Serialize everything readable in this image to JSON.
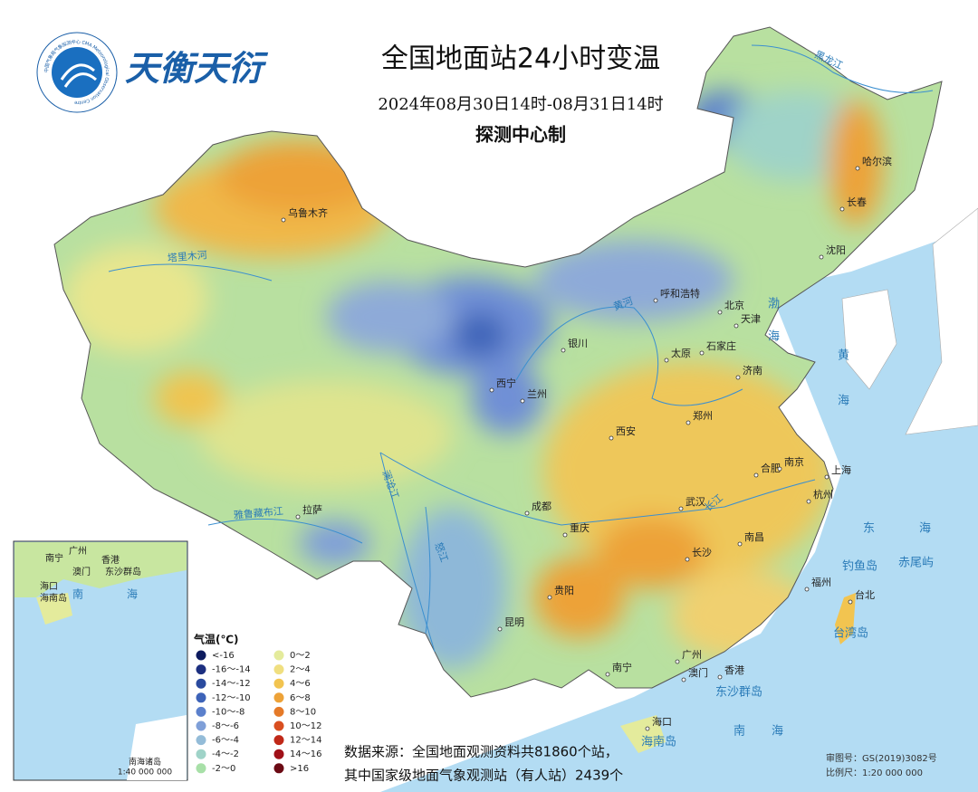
{
  "header": {
    "logo_ring_text": "中国气象局气象探测中心 CMA Meteorological Observation Centre",
    "logo_text": "天衡天衍",
    "title": "全国地面站24小时变温",
    "period": "2024年08月30日14时-08月31日14时",
    "producer": "探测中心制"
  },
  "cities": [
    "乌鲁木齐",
    "哈尔滨",
    "长春",
    "沈阳",
    "呼和浩特",
    "北京",
    "天津",
    "银川",
    "太原",
    "石家庄",
    "济南",
    "西宁",
    "兰州",
    "郑州",
    "西安",
    "合肥",
    "南京",
    "上海",
    "杭州",
    "成都",
    "武汉",
    "重庆",
    "长沙",
    "南昌",
    "福州",
    "台北",
    "贵阳",
    "昆明",
    "拉萨",
    "南宁",
    "广州",
    "澳门",
    "香港",
    "海口"
  ],
  "rivers": [
    "塔里木河",
    "黄河",
    "长江",
    "澜沧江",
    "雅鲁藏布江",
    "怒江",
    "黑龙江"
  ],
  "seas": [
    "渤",
    "海",
    "黄",
    "海",
    "东",
    "海",
    "南",
    "海",
    "钓鱼岛",
    "赤尾屿",
    "台湾岛",
    "东沙群岛",
    "海南岛"
  ],
  "inset": {
    "labels": [
      "南宁",
      "广州",
      "香港",
      "澳门",
      "东沙群岛",
      "海口",
      "海南岛",
      "南",
      "海"
    ],
    "name": "南海诸岛",
    "scale": "1:40 000 000"
  },
  "legend": {
    "title": "气温(℃)",
    "items": [
      {
        "label": "<-16",
        "color": "#0d1b5e"
      },
      {
        "label": "-16～-14",
        "color": "#1c2f80"
      },
      {
        "label": "-14～-12",
        "color": "#2a4a9e"
      },
      {
        "label": "-12～-10",
        "color": "#3d63b8"
      },
      {
        "label": "-10～-8",
        "color": "#5b80cc"
      },
      {
        "label": "-8～-6",
        "color": "#7f9fd8"
      },
      {
        "label": "-6～-4",
        "color": "#94bcd8"
      },
      {
        "label": "-4～-2",
        "color": "#9fd3c8"
      },
      {
        "label": "-2～0",
        "color": "#a8e0a8"
      },
      {
        "label": "0～2",
        "color": "#e4eb9c"
      },
      {
        "label": "2～4",
        "color": "#f0df80"
      },
      {
        "label": "4～6",
        "color": "#f2c450"
      },
      {
        "label": "6～8",
        "color": "#eda238"
      },
      {
        "label": "8～10",
        "color": "#e57a28"
      },
      {
        "label": "10～12",
        "color": "#d94f20"
      },
      {
        "label": "12～14",
        "color": "#c02818"
      },
      {
        "label": "14～16",
        "color": "#a01018"
      },
      {
        "label": ">16",
        "color": "#6b0a14"
      }
    ]
  },
  "footer": {
    "source_line1": "数据来源：全国地面观测资料共81860个站，",
    "source_line2": "其中国家级地面气象观测站（有人站）2439个",
    "approval": "审图号：GS(2019)3082号",
    "scale": "比例尺：1:20 000 000"
  }
}
